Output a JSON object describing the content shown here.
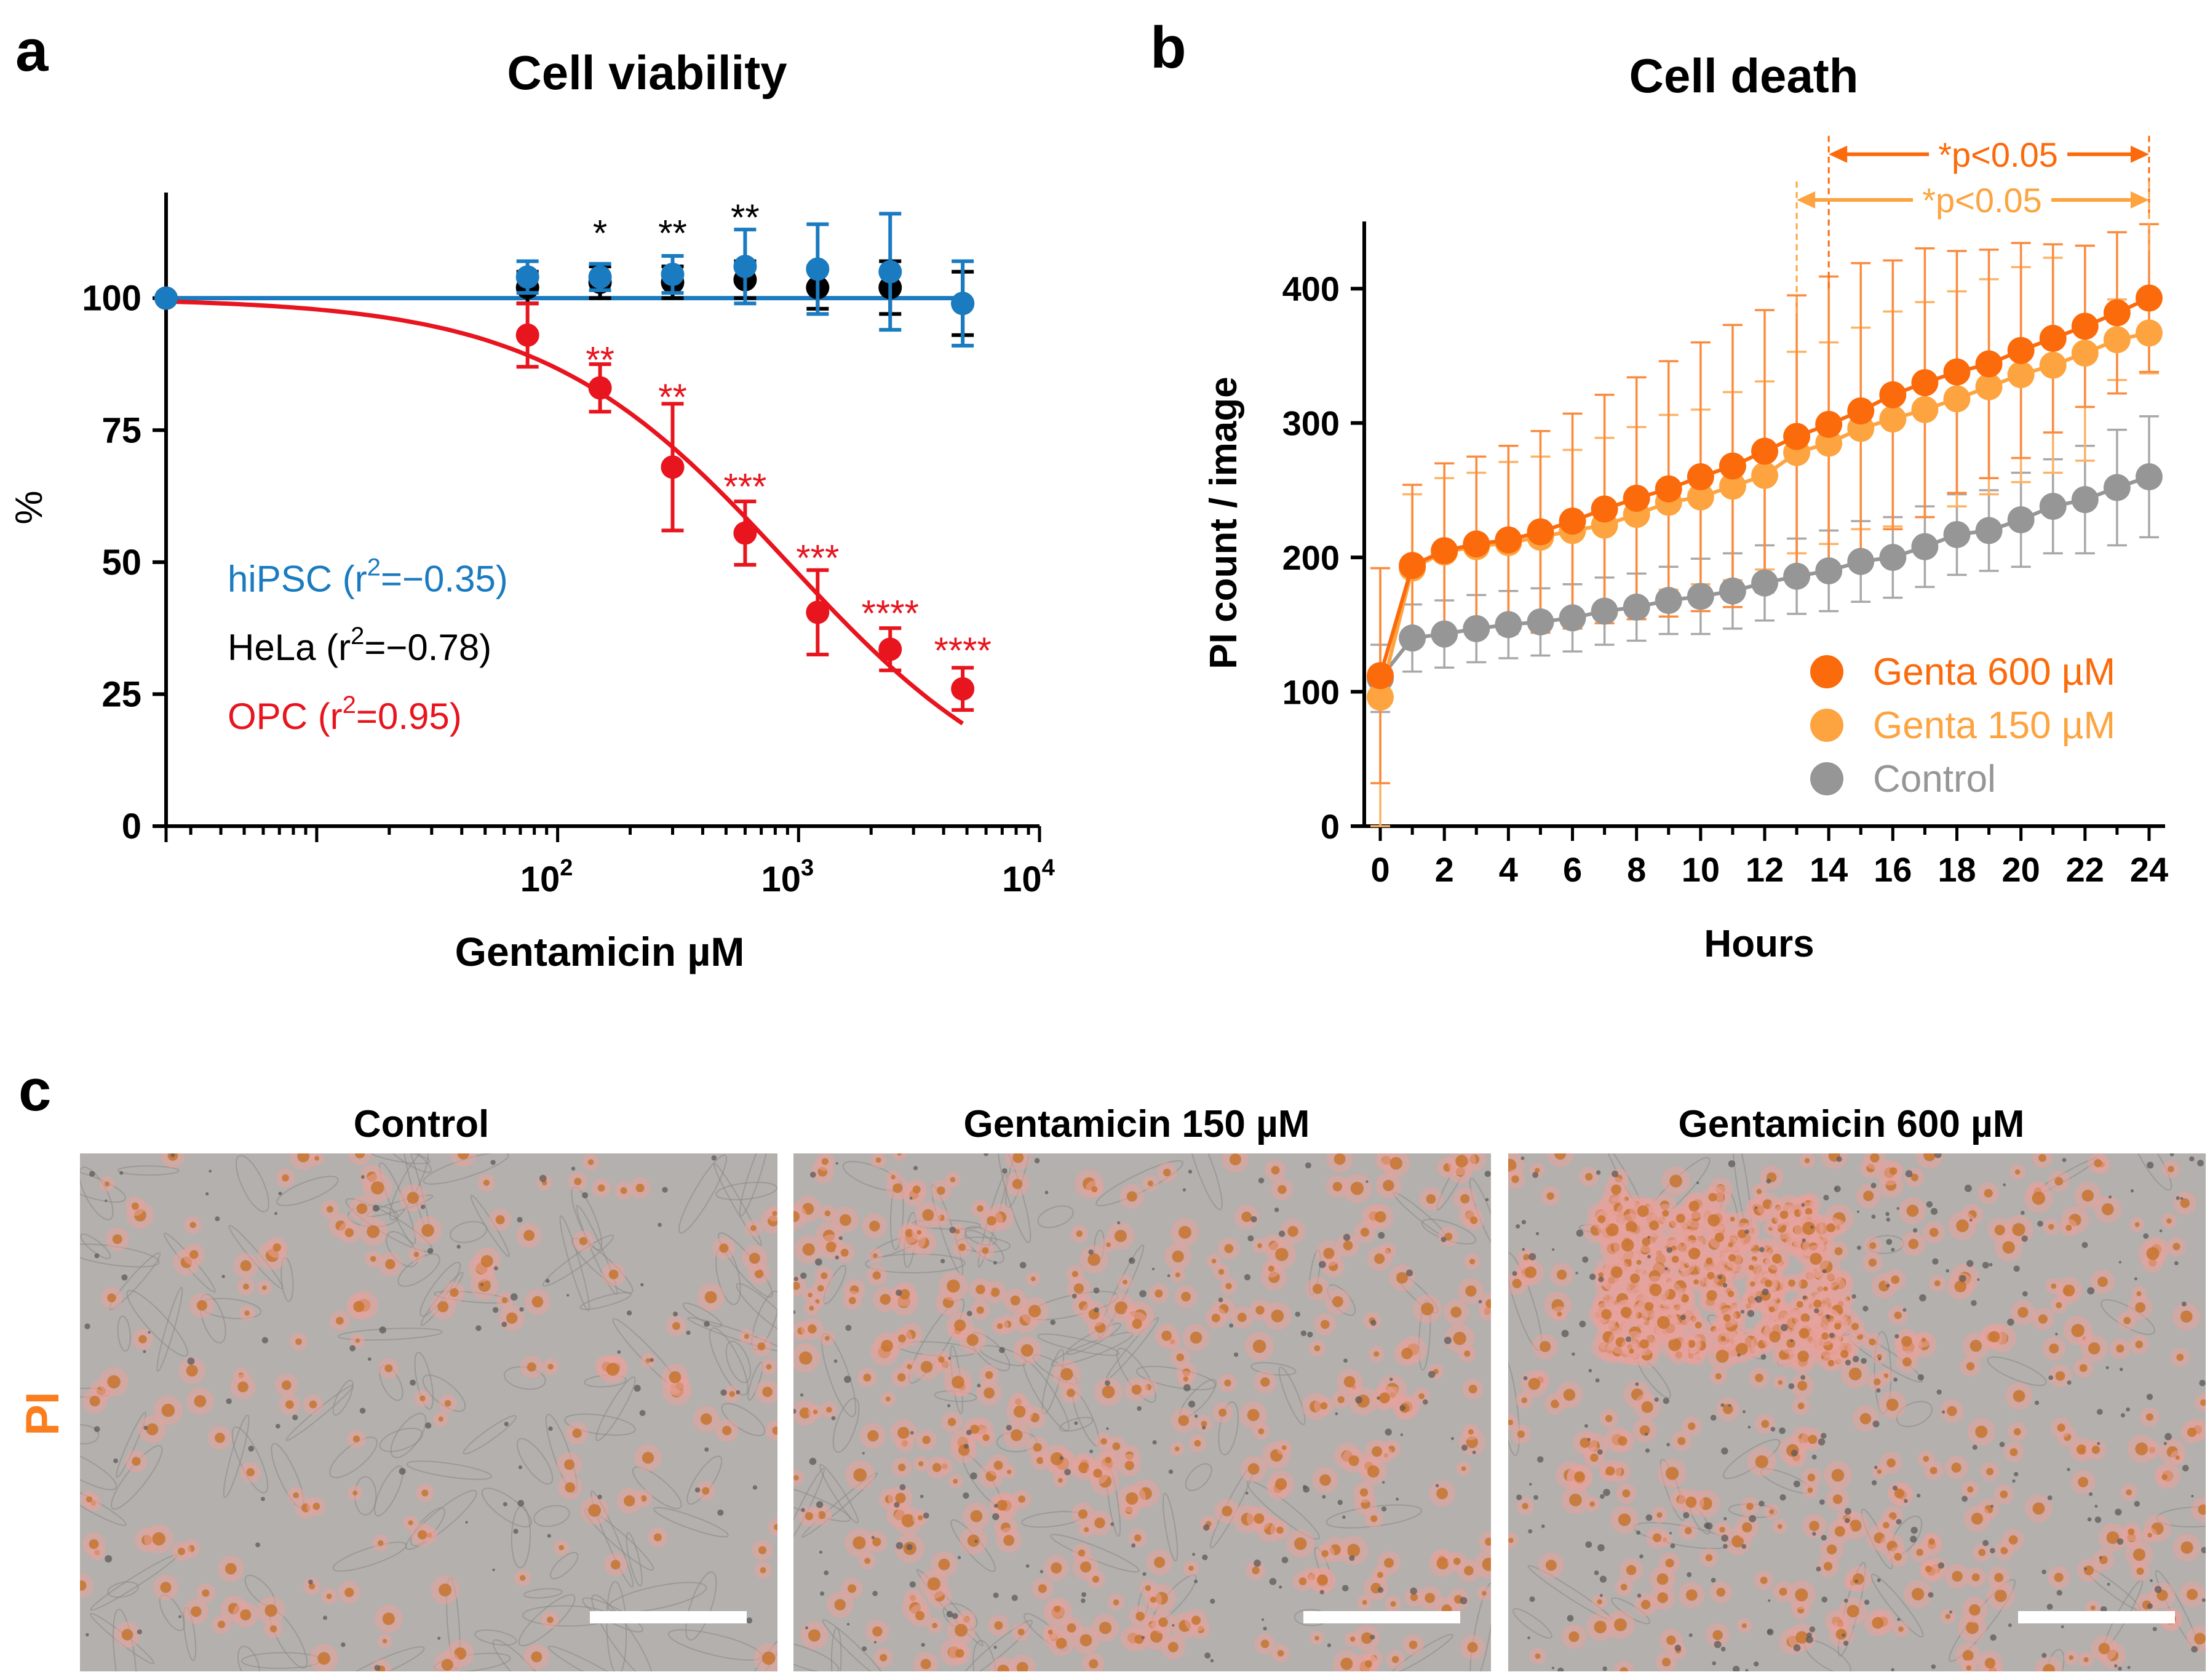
{
  "panel_labels": {
    "a": "a",
    "b": "b",
    "c": "c"
  },
  "colors": {
    "hipsc": "#1a7bc0",
    "hela": "#000000",
    "opc": "#e8141e",
    "genta600": "#fb6a0b",
    "genta150": "#fda440",
    "control": "#969696",
    "pi_label": "#fa7d1e"
  },
  "chart_data": [
    {
      "id": "a",
      "type": "scatter",
      "title": "Cell viability",
      "xlabel": "Gentamicin µM",
      "ylabel": "%",
      "xscale": "log10",
      "xlim": [
        2.37,
        10000
      ],
      "ylim": [
        0,
        120
      ],
      "y_ticks": [
        "0",
        "25",
        "50",
        "75",
        "100"
      ],
      "x_ticks": [
        {
          "value": 100,
          "base": "10",
          "exp": "2"
        },
        {
          "value": 1000,
          "base": "10",
          "exp": "3"
        },
        {
          "value": 10000,
          "base": "10",
          "exp": "4"
        }
      ],
      "x": [
        2.37,
        75,
        150,
        300,
        600,
        1200,
        2400,
        4800
      ],
      "series": [
        {
          "name": "hiPSC",
          "r2_text": "hiPSC (r",
          "r2_value": "=−0.35)",
          "values": [
            100,
            104,
            104,
            104.5,
            106,
            105.5,
            105,
            99
          ],
          "errors": [
            0,
            3,
            2.5,
            3.5,
            7,
            8.5,
            11,
            8
          ],
          "fit": "flat",
          "fit_level": 100,
          "legend_y": 47
        },
        {
          "name": "HeLa",
          "r2_text": "HeLa (r",
          "r2_value": "=−0.78)",
          "values": [
            100,
            102,
            103,
            103,
            103.5,
            102,
            102,
            99
          ],
          "errors": [
            0,
            3,
            3,
            3,
            3.5,
            4,
            5,
            6
          ],
          "fit": "none",
          "legend_y": 34
        },
        {
          "name": "OPC",
          "r2_text": "OPC (r",
          "r2_value": "=0.95)",
          "values": [
            100,
            93,
            83,
            68,
            55.5,
            40.5,
            33.5,
            26
          ],
          "errors": [
            0,
            6,
            4.5,
            12,
            6,
            8,
            4,
            4
          ],
          "fit": "sigmoid",
          "ic50": 900,
          "hill": 0.85,
          "fit_from": 2.37,
          "fit_to": 4800,
          "legend_y": 21
        }
      ],
      "annotations": [
        {
          "text": "*",
          "x": 150,
          "y": 112,
          "series": "HeLa"
        },
        {
          "text": "**",
          "x": 300,
          "y": 112,
          "series": "HeLa"
        },
        {
          "text": "**",
          "x": 600,
          "y": 115,
          "series": "HeLa"
        },
        {
          "text": "**",
          "x": 150,
          "y": 88,
          "series": "OPC"
        },
        {
          "text": "**",
          "x": 300,
          "y": 81,
          "series": "OPC"
        },
        {
          "text": "***",
          "x": 600,
          "y": 64,
          "series": "OPC"
        },
        {
          "text": "***",
          "x": 1200,
          "y": 50.5,
          "series": "OPC"
        },
        {
          "text": "****",
          "x": 2400,
          "y": 40,
          "series": "OPC"
        },
        {
          "text": "****",
          "x": 4800,
          "y": 33,
          "series": "OPC"
        }
      ]
    },
    {
      "id": "b",
      "type": "line",
      "title": "Cell death",
      "xlabel": "Hours",
      "ylabel": "PI count / image",
      "xlim": [
        -0.5,
        24.5
      ],
      "ylim": [
        0,
        450
      ],
      "x_ticks": [
        0,
        2,
        4,
        6,
        8,
        10,
        12,
        14,
        16,
        18,
        20,
        22,
        24
      ],
      "y_ticks": [
        0,
        100,
        200,
        300,
        400
      ],
      "x": [
        0,
        1,
        2,
        3,
        4,
        5,
        6,
        7,
        8,
        9,
        10,
        11,
        12,
        13,
        14,
        15,
        16,
        17,
        18,
        19,
        20,
        21,
        22,
        23,
        24
      ],
      "series": [
        {
          "name": "Control",
          "label": "Control",
          "values": [
            110,
            140,
            143,
            147,
            150,
            152,
            155,
            160,
            163,
            168,
            171,
            175,
            181,
            186,
            190,
            197,
            200,
            208,
            217,
            220,
            228,
            238,
            243,
            252,
            260
          ],
          "errors": [
            25,
            25,
            25,
            25,
            25,
            25,
            25,
            25,
            25,
            25,
            28,
            28,
            28,
            28,
            30,
            30,
            30,
            30,
            30,
            30,
            35,
            35,
            40,
            43,
            45
          ]
        },
        {
          "name": "Genta 150 µM",
          "label": "Genta 150 µM",
          "values": [
            96,
            192,
            204,
            208,
            211,
            215,
            220,
            224,
            232,
            241,
            245,
            253,
            261,
            278,
            285,
            296,
            303,
            310,
            318,
            327,
            336,
            343,
            352,
            362,
            367
          ],
          "errors": [
            96,
            55,
            55,
            55,
            60,
            60,
            60,
            65,
            65,
            65,
            65,
            70,
            70,
            75,
            75,
            75,
            80,
            80,
            80,
            80,
            80,
            80,
            80,
            30,
            30
          ]
        },
        {
          "name": "Genta 600 µM",
          "label": "Genta 600 µM",
          "values": [
            112,
            194,
            205,
            210,
            213,
            219,
            227,
            236,
            244,
            251,
            260,
            268,
            279,
            290,
            299,
            309,
            321,
            330,
            338,
            344,
            354,
            363,
            372,
            382,
            393
          ],
          "errors": [
            80,
            60,
            65,
            65,
            70,
            75,
            80,
            85,
            90,
            95,
            100,
            105,
            105,
            105,
            110,
            110,
            100,
            100,
            90,
            85,
            80,
            70,
            60,
            60,
            55
          ]
        }
      ],
      "significance": [
        {
          "text": "*p<0.05",
          "from": 14,
          "to": 24,
          "series": "Genta 600 µM",
          "y": 500
        },
        {
          "text": "*p<0.05",
          "from": 13,
          "to": 24,
          "series": "Genta 150 µM",
          "y": 466
        }
      ]
    }
  ],
  "panel_c": {
    "pi_label": "PI",
    "images": [
      {
        "title": "Control",
        "density": "low"
      },
      {
        "title": "Gentamicin 150 µM",
        "density": "medium"
      },
      {
        "title": "Gentamicin 600 µM",
        "density": "high"
      }
    ]
  }
}
